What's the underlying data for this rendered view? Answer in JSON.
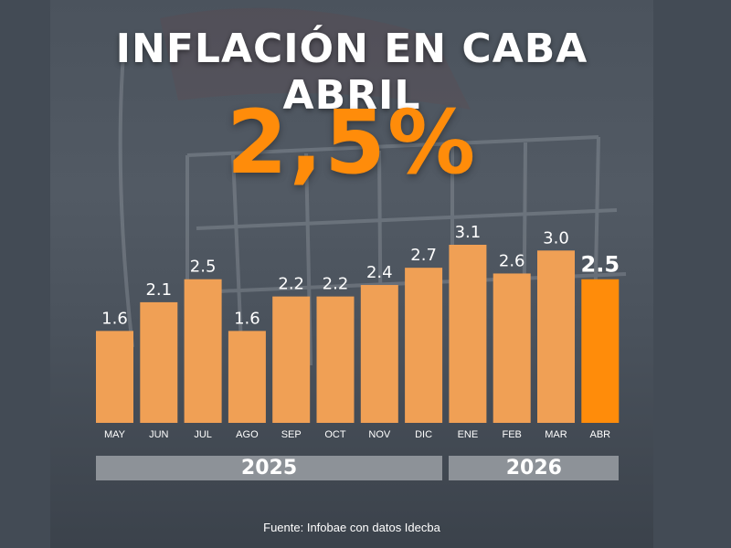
{
  "header": {
    "title": "INFLACIÓN EN CABA ABRIL",
    "headline_value": "2,5%"
  },
  "colors": {
    "bar": "#f0a055",
    "bar_highlight": "#ff8c0a",
    "headline": "#ff8c0a",
    "year_band": "#8d9298",
    "text": "#ffffff"
  },
  "chart_data": {
    "type": "bar",
    "title": "",
    "categories": [
      "MAY",
      "JUN",
      "JUL",
      "AGO",
      "SEP",
      "OCT",
      "NOV",
      "DIC",
      "ENE",
      "FEB",
      "MAR",
      "ABR"
    ],
    "values": [
      1.6,
      2.1,
      2.5,
      1.6,
      2.2,
      2.2,
      2.4,
      2.7,
      3.1,
      2.6,
      3.0,
      2.5
    ],
    "value_labels": [
      "1.6",
      "2.1",
      "2.5",
      "1.6",
      "2.2",
      "2.2",
      "2.4",
      "2.7",
      "3.1",
      "2.6",
      "3.0",
      "2.5"
    ],
    "highlight_index": 11,
    "ylim": [
      0,
      3.1
    ],
    "grid": false,
    "xlabel": "",
    "ylabel": "",
    "year_groups": [
      {
        "label": "2025",
        "start": 0,
        "end": 7
      },
      {
        "label": "2026",
        "start": 8,
        "end": 11
      }
    ]
  },
  "footer": {
    "source": "Fuente: Infobae con datos Idecba"
  }
}
